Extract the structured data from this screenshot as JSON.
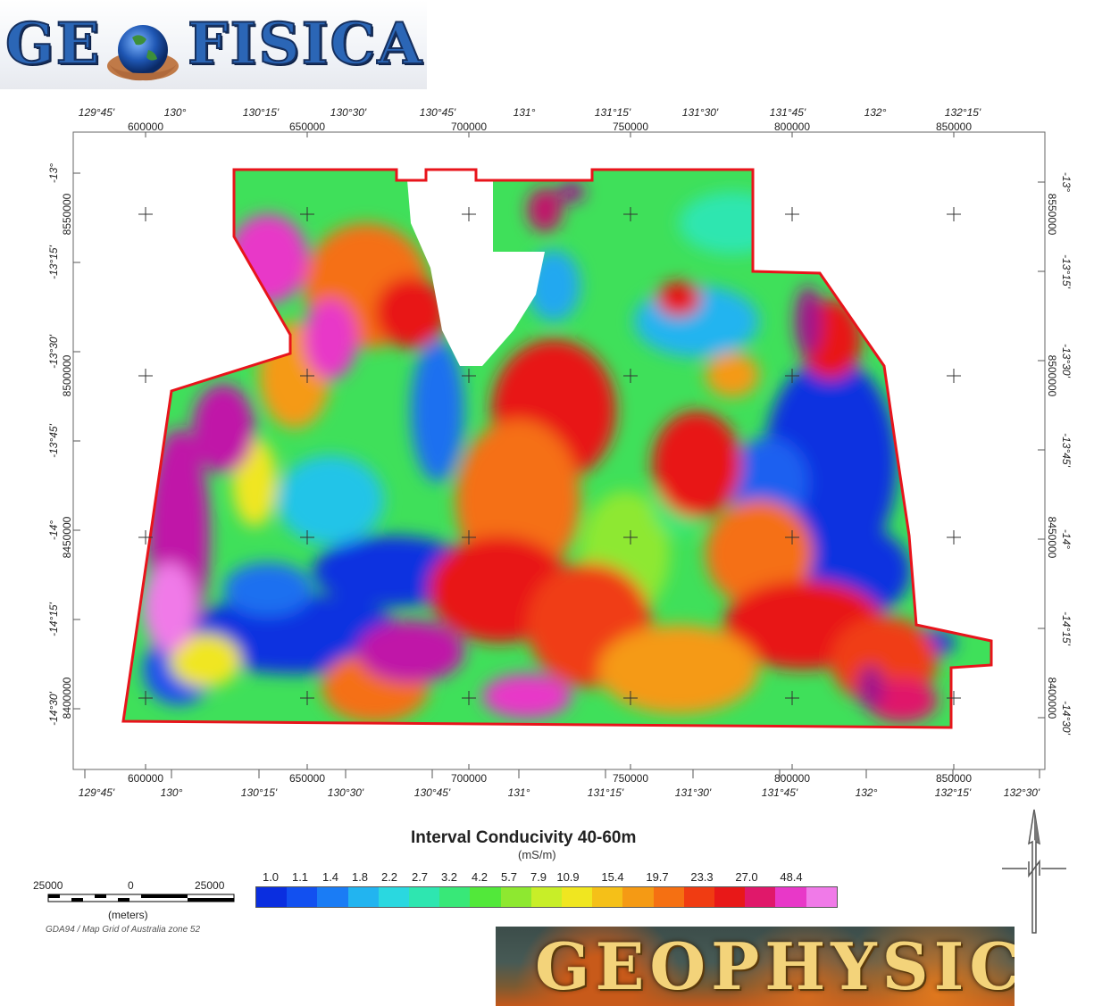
{
  "logos": {
    "top_text_a": "GE",
    "top_text_b": "FISICA",
    "bottom_text": "GEOPHYSIC"
  },
  "map": {
    "lon_top": [
      "129°45'",
      "130°",
      "130°15'",
      "130°30'",
      "130°45'",
      "131°",
      "131°15'",
      "131°30'",
      "131°45'",
      "132°",
      "132°15'"
    ],
    "lon_bottom": [
      "129°45'",
      "130°",
      "130°15'",
      "130°30'",
      "130°45'",
      "131°",
      "131°15'",
      "131°30'",
      "131°45'",
      "132°",
      "132°15'",
      "132°30'"
    ],
    "easting": [
      "600000",
      "650000",
      "700000",
      "750000",
      "800000",
      "850000"
    ],
    "lat_left": [
      "-13°",
      "-13°15'",
      "-13°30'",
      "-13°45'",
      "-14°",
      "-14°15'",
      "-14°30'"
    ],
    "lat_right": [
      "-13°",
      "-13°15'",
      "-13°30'",
      "-13°45'",
      "-14°",
      "-14°15'",
      "-14°30'"
    ],
    "northing": [
      "8550000",
      "8500000",
      "8450000",
      "8400000"
    ],
    "boundary_color": "#e8141b"
  },
  "legend": {
    "title": "Interval Conducivity 40-60m",
    "unit": "(mS/m)",
    "values": [
      "1.0",
      "1.1",
      "1.4",
      "1.8",
      "2.2",
      "2.7",
      "3.2",
      "4.2",
      "5.7",
      "7.9",
      "10.9",
      "15.4",
      "19.7",
      "23.3",
      "27.0",
      "48.4"
    ],
    "colors": [
      "#0a2ee0",
      "#1250f0",
      "#1a7cf5",
      "#22b4f0",
      "#2ad8e0",
      "#2ee6b0",
      "#38e878",
      "#52e83a",
      "#8ee830",
      "#c8ee28",
      "#f0e620",
      "#f5c018",
      "#f59a14",
      "#f57012",
      "#f03c12",
      "#e81818",
      "#e0186a",
      "#e838c8",
      "#f07ae8"
    ]
  },
  "scale": {
    "left": "25000",
    "middle": "0",
    "right": "25000",
    "units": "(meters)",
    "projection": "GDA94 / Map Grid of Australia zone 52"
  }
}
